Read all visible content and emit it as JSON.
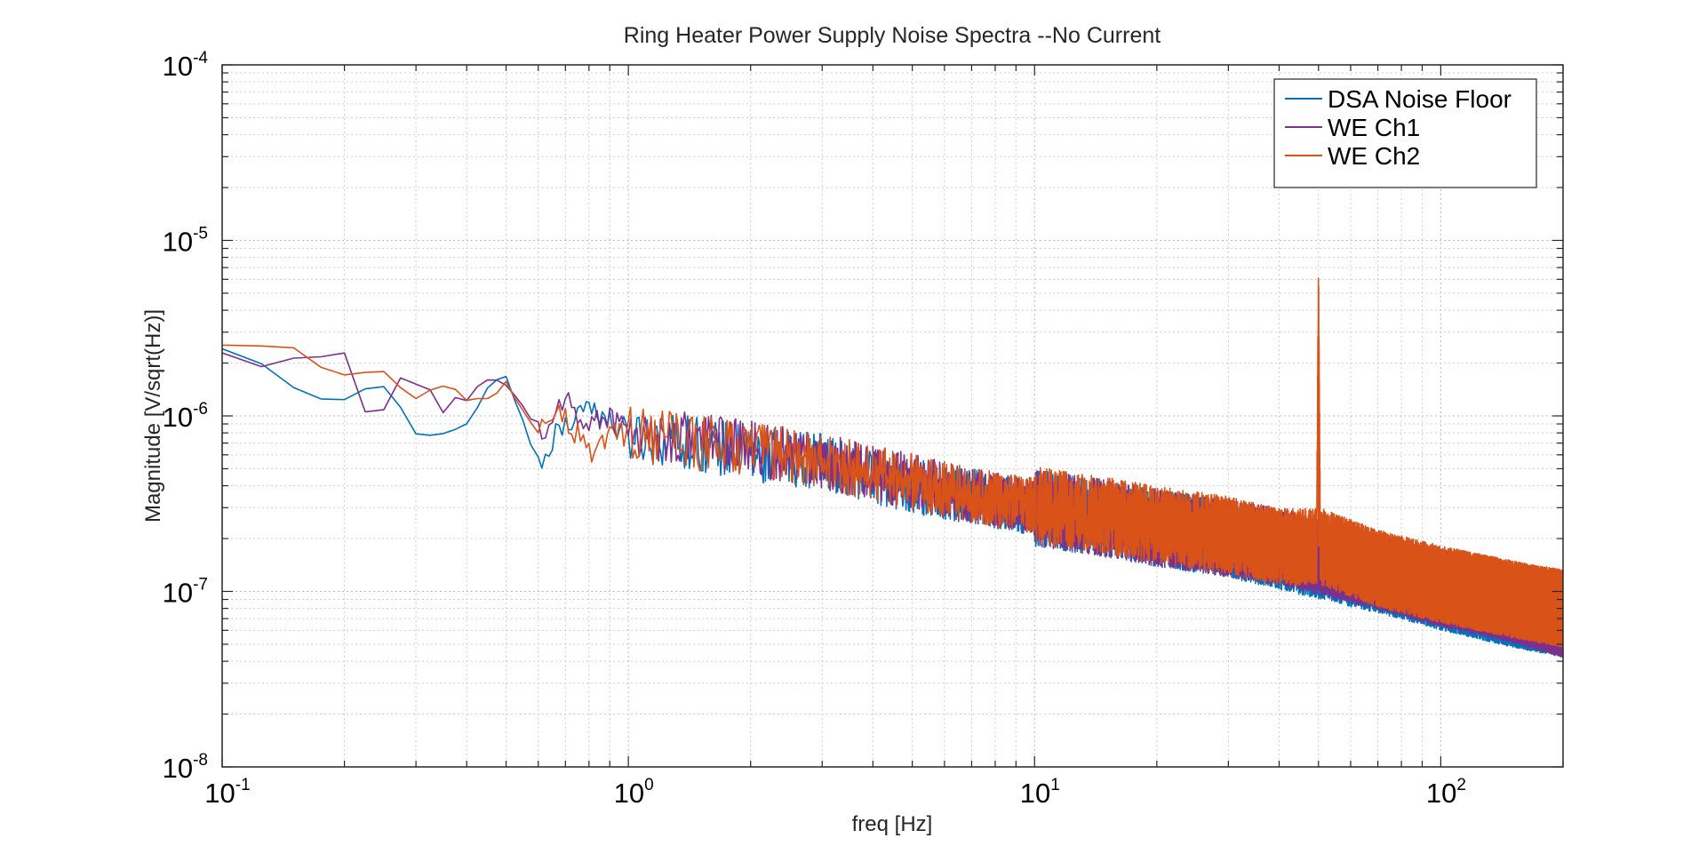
{
  "chart_data": {
    "type": "line",
    "title": "Ring Heater Power Supply Noise Spectra --No Current",
    "xlabel": "freq [Hz]",
    "ylabel": "Magnitude [V/sqrt(Hz)]",
    "xscale": "log",
    "yscale": "log",
    "xlim": [
      0.1,
      200
    ],
    "ylim": [
      1e-08,
      0.0001
    ],
    "x_ticks": [
      {
        "value": 0.1,
        "base": "10",
        "exp": "-1"
      },
      {
        "value": 1,
        "base": "10",
        "exp": "0"
      },
      {
        "value": 10,
        "base": "10",
        "exp": "1"
      },
      {
        "value": 100,
        "base": "10",
        "exp": "2"
      }
    ],
    "y_ticks": [
      {
        "value": 1e-08,
        "base": "10",
        "exp": "-8"
      },
      {
        "value": 1e-07,
        "base": "10",
        "exp": "-7"
      },
      {
        "value": 1e-06,
        "base": "10",
        "exp": "-6"
      },
      {
        "value": 1e-05,
        "base": "10",
        "exp": "-5"
      },
      {
        "value": 0.0001,
        "base": "10",
        "exp": "-4"
      }
    ],
    "grid": true,
    "legend_position": "top-right",
    "series": [
      {
        "name": "DSA Noise Floor",
        "color": "#0072BD",
        "x": [
          0.1,
          0.125,
          0.15,
          0.175,
          0.2,
          0.25,
          0.3,
          0.35,
          0.4,
          0.45,
          0.5,
          0.6,
          0.7,
          0.8,
          0.9,
          1.0,
          1.2,
          1.5,
          2,
          3,
          5,
          7,
          10,
          15,
          20,
          30,
          40,
          50,
          70,
          100,
          150,
          200
        ],
        "y": [
          2.5e-06,
          1.9e-06,
          1.45e-06,
          1.25e-06,
          1.2e-06,
          1.5e-06,
          8e-07,
          7.8e-07,
          8.5e-07,
          1.5e-06,
          1.6e-06,
          5.5e-07,
          9e-07,
          1.2e-06,
          9e-07,
          8e-07,
          7.5e-07,
          7e-07,
          6e-07,
          5.5e-07,
          4e-07,
          3.5e-07,
          3e-07,
          2.6e-07,
          2.3e-07,
          2e-07,
          1.7e-07,
          1.5e-07,
          1.25e-07,
          1e-07,
          8e-08,
          7e-08
        ]
      },
      {
        "name": "WE Ch1",
        "color": "#7E2F8E",
        "x": [
          0.1,
          0.125,
          0.15,
          0.175,
          0.2,
          0.22,
          0.25,
          0.28,
          0.3,
          0.35,
          0.4,
          0.45,
          0.5,
          0.6,
          0.7,
          0.8,
          0.9,
          1.0,
          1.2,
          1.5,
          2,
          3,
          5,
          7,
          10,
          15,
          20,
          30,
          40,
          50,
          70,
          100,
          150,
          200
        ],
        "y": [
          2.2e-06,
          2e-06,
          2.2e-06,
          2.25e-06,
          2.2e-06,
          1.1e-06,
          1.1e-06,
          1.7e-06,
          1.6e-06,
          1.1e-06,
          1.3e-06,
          1.5e-06,
          1.5e-06,
          8e-07,
          1.2e-06,
          9e-07,
          1e-06,
          8.5e-07,
          7.5e-07,
          7.5e-07,
          6.5e-07,
          5.5e-07,
          4.2e-07,
          3.5e-07,
          3e-07,
          2.6e-07,
          2.3e-07,
          2e-07,
          1.8e-07,
          1.6e-07,
          1.3e-07,
          1.05e-07,
          8.5e-08,
          7e-08
        ]
      },
      {
        "name": "WE Ch2",
        "color": "#D95319",
        "x": [
          0.1,
          0.125,
          0.15,
          0.175,
          0.2,
          0.25,
          0.3,
          0.35,
          0.4,
          0.45,
          0.5,
          0.6,
          0.7,
          0.8,
          0.9,
          1.0,
          1.2,
          1.5,
          2,
          3,
          5,
          7,
          10,
          15,
          20,
          30,
          40,
          49.5,
          50,
          50.5,
          70,
          100,
          150,
          200
        ],
        "y": [
          2.6e-06,
          2.6e-06,
          2.5e-06,
          2e-06,
          1.6e-06,
          1.7e-06,
          1.25e-06,
          1.4e-06,
          1.3e-06,
          1.2e-06,
          1.5e-06,
          8.5e-07,
          1e-06,
          6e-07,
          8e-07,
          8e-07,
          7.5e-07,
          7e-07,
          6.5e-07,
          5.5e-07,
          4.2e-07,
          3.5e-07,
          3.1e-07,
          2.7e-07,
          2.4e-07,
          2.1e-07,
          1.8e-07,
          1.8e-07,
          5.5e-06,
          1.8e-07,
          1.35e-07,
          1.1e-07,
          9e-08,
          8e-08
        ]
      }
    ]
  }
}
